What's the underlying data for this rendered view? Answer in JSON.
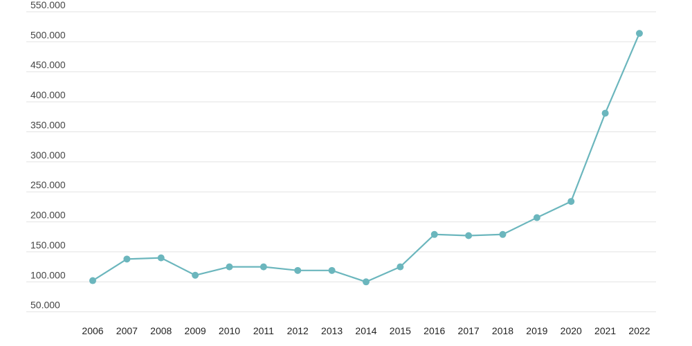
{
  "chart_data": {
    "type": "line",
    "title": "",
    "xlabel": "",
    "ylabel": "",
    "x": [
      "2006",
      "2007",
      "2008",
      "2009",
      "2010",
      "2011",
      "2012",
      "2013",
      "2014",
      "2015",
      "2016",
      "2017",
      "2018",
      "2019",
      "2020",
      "2021",
      "2022"
    ],
    "series": [
      {
        "values": [
          102000,
          138000,
          140000,
          111000,
          125000,
          125000,
          119000,
          119000,
          100000,
          125000,
          179000,
          177000,
          179000,
          207000,
          234000,
          381000,
          514000
        ]
      }
    ],
    "y_ticks": [
      "50.000",
      "100.000",
      "150.000",
      "200.000",
      "250.000",
      "300.000",
      "350.000",
      "400.000",
      "450.000",
      "500.000",
      "550.000"
    ],
    "y_tick_values": [
      50000,
      100000,
      150000,
      200000,
      250000,
      300000,
      350000,
      400000,
      450000,
      500000,
      550000
    ],
    "ylim": [
      45000,
      550000
    ],
    "grid": true,
    "legend": "none",
    "colors": {
      "line": "#6bb6bd",
      "marker": "#6bb6bd",
      "grid": "#e2e2e2"
    }
  }
}
